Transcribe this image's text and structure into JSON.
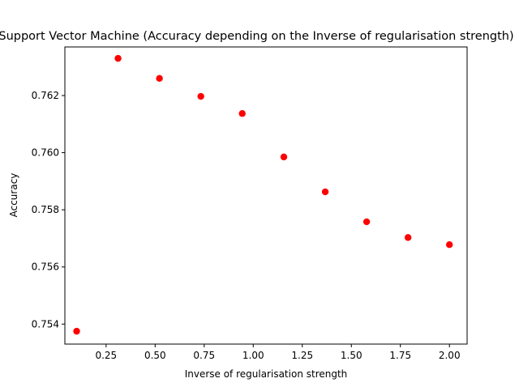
{
  "chart_data": {
    "type": "scatter",
    "title": "Support Vector Machine (Accuracy depending on the Inverse of regularisation strength)",
    "xlabel": "Inverse of regularisation strength",
    "ylabel": "Accuracy",
    "xlim": [
      0.04,
      2.09
    ],
    "ylim": [
      0.7533,
      0.7637
    ],
    "xticks": [
      0.25,
      0.5,
      0.75,
      1.0,
      1.25,
      1.5,
      1.75,
      2.0
    ],
    "xtick_labels": [
      "0.25",
      "0.50",
      "0.75",
      "1.00",
      "1.25",
      "1.50",
      "1.75",
      "2.00"
    ],
    "yticks": [
      0.754,
      0.756,
      0.758,
      0.76,
      0.762
    ],
    "ytick_labels": [
      "0.754",
      "0.756",
      "0.758",
      "0.760",
      "0.762"
    ],
    "grid": false,
    "marker_color": "#ff0000",
    "points": [
      {
        "x": 0.1,
        "y": 0.75375
      },
      {
        "x": 0.311,
        "y": 0.7633
      },
      {
        "x": 0.522,
        "y": 0.7626
      },
      {
        "x": 0.733,
        "y": 0.76197
      },
      {
        "x": 0.944,
        "y": 0.76137
      },
      {
        "x": 1.156,
        "y": 0.75985
      },
      {
        "x": 1.367,
        "y": 0.75863
      },
      {
        "x": 1.578,
        "y": 0.75758
      },
      {
        "x": 1.789,
        "y": 0.75703
      },
      {
        "x": 2.0,
        "y": 0.75678
      }
    ]
  }
}
